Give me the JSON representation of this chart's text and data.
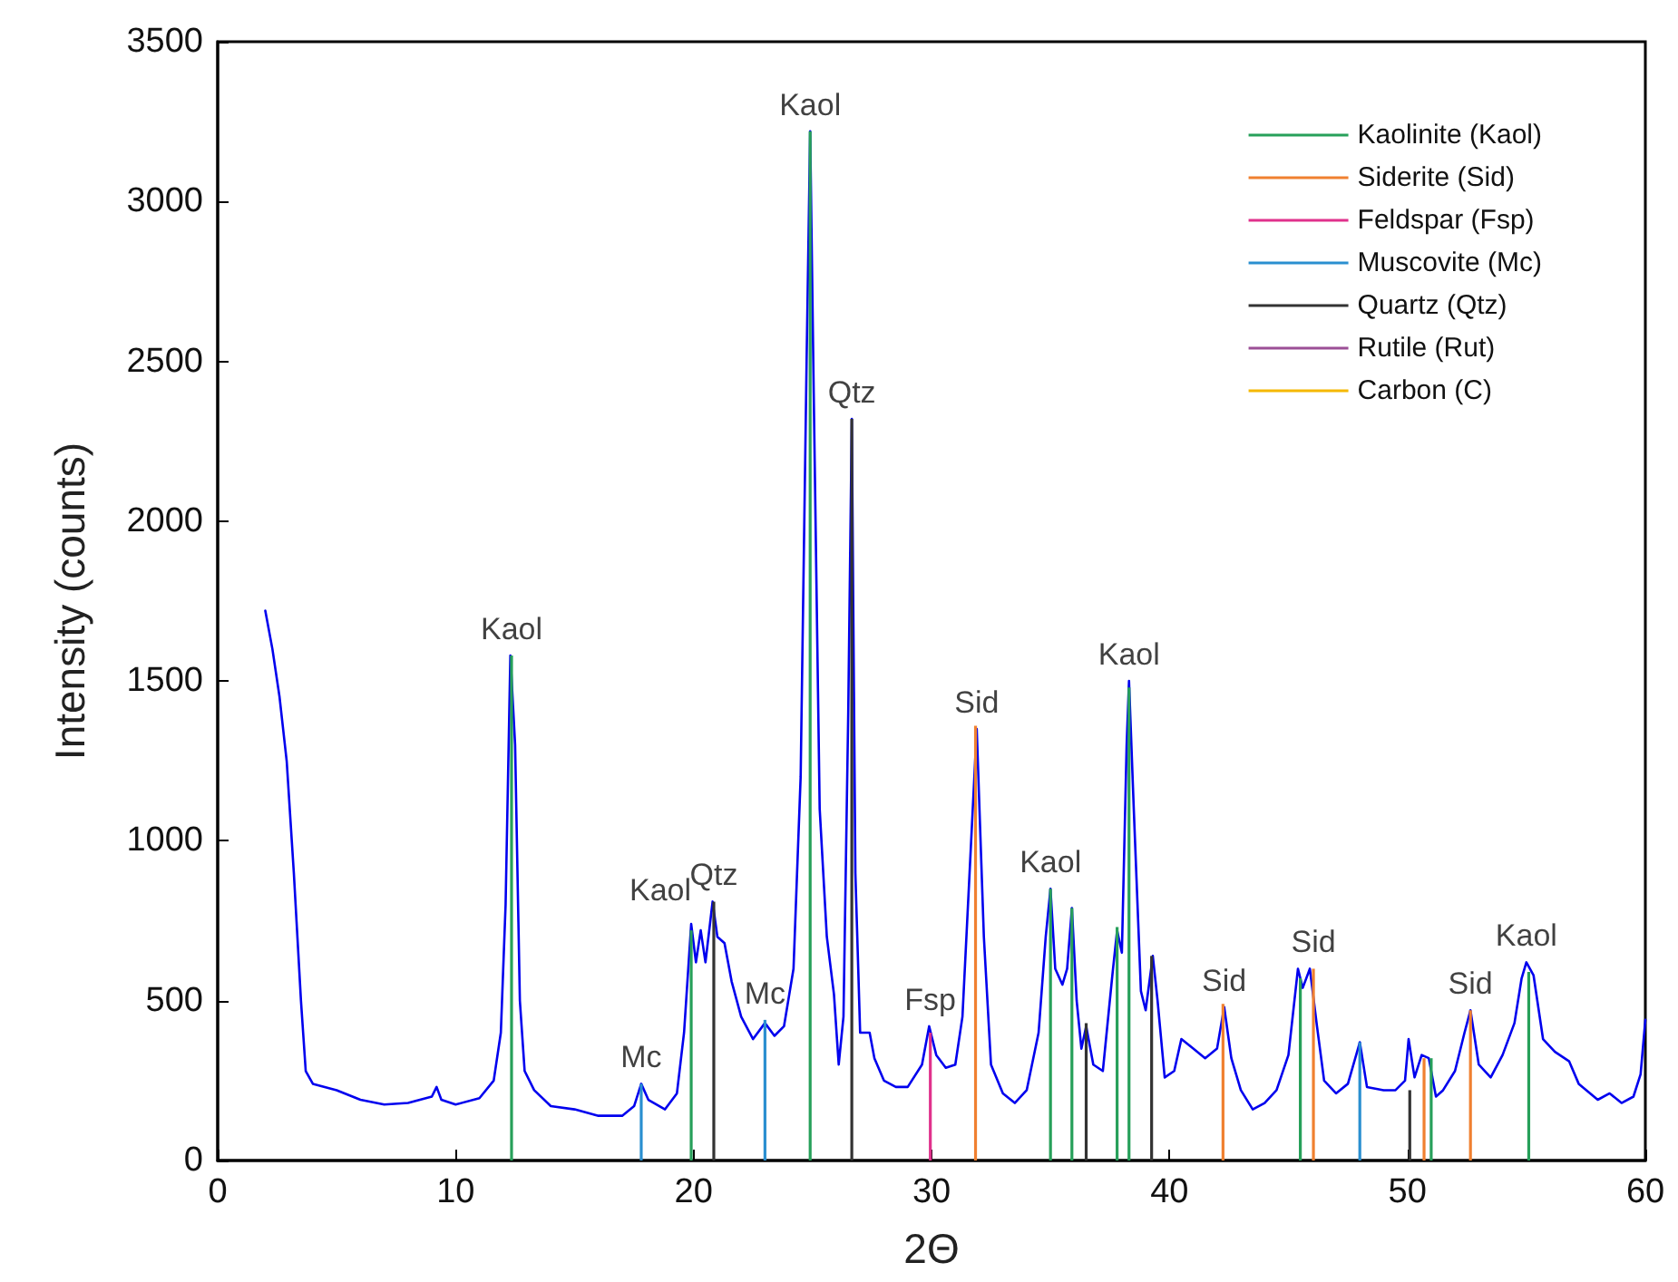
{
  "chart_data": {
    "type": "line",
    "xlabel": "2Θ",
    "ylabel": "Intensity (counts)",
    "xlim": [
      0,
      60
    ],
    "xticks": [
      0,
      10,
      20,
      30,
      40,
      50,
      60
    ],
    "ylim": [
      0,
      3500
    ],
    "yticks": [
      0,
      500,
      1000,
      1500,
      2000,
      2500,
      3000,
      3500
    ],
    "grid": false,
    "legend": "top right",
    "marker": "none",
    "line_style": "solid",
    "series": [
      {
        "color": "#0000ee",
        "x": [
          2.0,
          2.3,
          2.6,
          2.9,
          3.2,
          3.5,
          3.7,
          4.0,
          5,
          6,
          7,
          8,
          9,
          9.2,
          9.4,
          10,
          11,
          11.6,
          11.9,
          12.1,
          12.3,
          12.5,
          12.7,
          12.9,
          13.3,
          14,
          15,
          16,
          17,
          17.5,
          17.8,
          18.1,
          18.8,
          19.3,
          19.6,
          19.9,
          20.1,
          20.3,
          20.5,
          20.8,
          21.0,
          21.3,
          21.6,
          22.0,
          22.5,
          23.0,
          23.4,
          23.8,
          24.2,
          24.5,
          24.75,
          24.9,
          25.05,
          25.3,
          25.6,
          25.9,
          26.1,
          26.3,
          26.5,
          26.65,
          26.8,
          27.0,
          27.4,
          27.6,
          28.0,
          28.5,
          29,
          29.6,
          29.9,
          30.2,
          30.6,
          31.0,
          31.3,
          31.6,
          31.9,
          32.2,
          32.5,
          33,
          33.5,
          34,
          34.5,
          34.8,
          35.0,
          35.2,
          35.5,
          35.7,
          35.9,
          36.1,
          36.3,
          36.5,
          36.8,
          37.2,
          37.6,
          37.8,
          38.0,
          38.2,
          38.3,
          38.5,
          38.8,
          39.0,
          39.3,
          39.5,
          39.8,
          40.2,
          40.5,
          41,
          41.5,
          42,
          42.3,
          42.6,
          43,
          43.5,
          44,
          44.5,
          45,
          45.4,
          45.6,
          45.9,
          46.2,
          46.5,
          47,
          47.5,
          48.0,
          48.3,
          49,
          49.5,
          49.9,
          50.05,
          50.3,
          50.6,
          50.9,
          51.2,
          51.5,
          52,
          52.4,
          52.65,
          53.0,
          53.5,
          54,
          54.5,
          54.8,
          55.0,
          55.3,
          55.7,
          56.2,
          56.8,
          57.2,
          58,
          58.5,
          59,
          59.5,
          59.8,
          60
        ],
        "values": [
          1720,
          1600,
          1450,
          1250,
          900,
          500,
          280,
          240,
          220,
          190,
          175,
          180,
          200,
          230,
          190,
          175,
          195,
          250,
          400,
          800,
          1580,
          1300,
          500,
          280,
          220,
          170,
          160,
          140,
          140,
          170,
          240,
          190,
          160,
          210,
          400,
          740,
          620,
          720,
          620,
          810,
          700,
          680,
          560,
          450,
          380,
          430,
          390,
          420,
          600,
          1200,
          2500,
          3220,
          2400,
          1100,
          700,
          520,
          300,
          450,
          1400,
          2320,
          900,
          400,
          400,
          320,
          250,
          230,
          230,
          300,
          420,
          330,
          290,
          300,
          450,
          900,
          1350,
          700,
          300,
          210,
          180,
          220,
          400,
          700,
          850,
          600,
          550,
          600,
          790,
          500,
          350,
          420,
          300,
          280,
          580,
          720,
          650,
          1300,
          1500,
          1100,
          530,
          470,
          640,
          500,
          260,
          280,
          380,
          350,
          320,
          350,
          480,
          320,
          220,
          160,
          180,
          220,
          330,
          600,
          540,
          600,
          420,
          250,
          210,
          240,
          370,
          230,
          220,
          220,
          250,
          380,
          260,
          330,
          320,
          200,
          220,
          280,
          400,
          470,
          300,
          260,
          330,
          430,
          570,
          620,
          580,
          380,
          340,
          310,
          240,
          190,
          210,
          180,
          200,
          270,
          440
        ]
      },
      {
        "type": "bar",
        "name": "Kaolinite (Kaol)",
        "color": "#27a05a",
        "x": [
          12.35,
          19.9,
          24.9,
          35.0,
          35.9,
          37.8,
          38.3,
          45.5,
          51.0,
          55.1
        ],
        "values": [
          1580,
          720,
          3220,
          850,
          790,
          730,
          1480,
          570,
          320,
          590
        ]
      },
      {
        "type": "bar",
        "name": "Siderite (Sid)",
        "color": "#f08030",
        "x": [
          31.85,
          42.25,
          46.05,
          50.7,
          52.65
        ],
        "values": [
          1360,
          490,
          600,
          320,
          470
        ]
      },
      {
        "type": "bar",
        "name": "Feldspar (Fsp)",
        "color": "#e0318c",
        "x": [
          29.95
        ],
        "values": [
          400
        ]
      },
      {
        "type": "bar",
        "name": "Muscovite (Mc)",
        "color": "#2a8fd0",
        "x": [
          17.8,
          23.0,
          48.0
        ],
        "values": [
          240,
          440,
          370
        ]
      },
      {
        "type": "bar",
        "name": "Quartz (Qtz)",
        "color": "#333333",
        "x": [
          20.85,
          26.65,
          36.5,
          39.25,
          50.1
        ],
        "values": [
          810,
          2320,
          430,
          640,
          220
        ]
      },
      {
        "type": "bar",
        "name": "Rutile (Rut)",
        "color": "#9b4f96"
      },
      {
        "type": "bar",
        "name": "Carbon (C)",
        "color": "#f5b800"
      }
    ],
    "annotations": [
      {
        "text": "Kaol",
        "x": 12.35,
        "y": 1580
      },
      {
        "text": "Mc",
        "x": 17.8,
        "y": 240
      },
      {
        "text": "Kaol",
        "x": 19.9,
        "y": 740
      },
      {
        "text": "Qtz",
        "x": 20.85,
        "y": 810
      },
      {
        "text": "Mc",
        "x": 23.0,
        "y": 440
      },
      {
        "text": "Kaol",
        "x": 24.9,
        "y": 3220
      },
      {
        "text": "Qtz",
        "x": 26.65,
        "y": 2320
      },
      {
        "text": "Fsp",
        "x": 29.95,
        "y": 420
      },
      {
        "text": "Sid",
        "x": 31.9,
        "y": 1350
      },
      {
        "text": "Kaol",
        "x": 35.0,
        "y": 850
      },
      {
        "text": "Kaol",
        "x": 38.3,
        "y": 1500
      },
      {
        "text": "Sid",
        "x": 42.3,
        "y": 480
      },
      {
        "text": "Sid",
        "x": 46.05,
        "y": 600
      },
      {
        "text": "Sid",
        "x": 52.65,
        "y": 470
      },
      {
        "text": "Kaol",
        "x": 55.0,
        "y": 620
      }
    ]
  }
}
